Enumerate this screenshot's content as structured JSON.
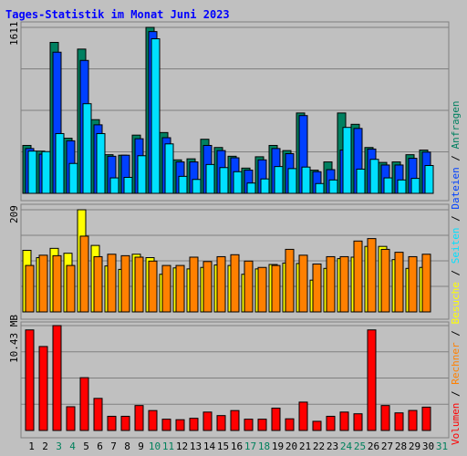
{
  "chart_data": [
    {
      "type": "bar",
      "title": "Tages-Statistik im Monat Juni 2023",
      "ylabel": "1611",
      "categories": [
        "1",
        "2",
        "3",
        "4",
        "5",
        "6",
        "7",
        "8",
        "9",
        "10",
        "11",
        "12",
        "13",
        "14",
        "15",
        "16",
        "17",
        "18",
        "19",
        "20",
        "21",
        "22",
        "23",
        "24",
        "25",
        "26",
        "27",
        "28",
        "29",
        "30",
        "31"
      ],
      "weekend_days": [
        "3",
        "4",
        "10",
        "11",
        "17",
        "18",
        "24",
        "25",
        "31"
      ],
      "series": [
        {
          "name": "Anfragen",
          "color": "#008060",
          "values": [
            465,
            410,
            1465,
            535,
            1400,
            715,
            375,
            370,
            565,
            1611,
            590,
            325,
            335,
            525,
            445,
            360,
            245,
            355,
            465,
            415,
            780,
            225,
            305,
            780,
            670,
            445,
            300,
            305,
            375,
            420,
            0
          ]
        },
        {
          "name": "Dateien",
          "color": "#0040ff",
          "values": [
            435,
            380,
            1370,
            510,
            1290,
            665,
            360,
            370,
            530,
            1570,
            540,
            305,
            305,
            465,
            415,
            345,
            225,
            325,
            435,
            385,
            755,
            210,
            230,
            420,
            630,
            430,
            275,
            275,
            340,
            400,
            0
          ]
        },
        {
          "name": "Seiten",
          "color": "#00e0ff",
          "values": [
            410,
            405,
            580,
            290,
            870,
            580,
            150,
            155,
            365,
            1500,
            480,
            165,
            135,
            280,
            250,
            210,
            100,
            140,
            260,
            240,
            255,
            95,
            130,
            640,
            235,
            330,
            150,
            130,
            145,
            270,
            0
          ]
        }
      ]
    },
    {
      "type": "bar",
      "ylabel": "209",
      "categories": [
        "1",
        "2",
        "3",
        "4",
        "5",
        "6",
        "7",
        "8",
        "9",
        "10",
        "11",
        "12",
        "13",
        "14",
        "15",
        "16",
        "17",
        "18",
        "19",
        "20",
        "21",
        "22",
        "23",
        "24",
        "25",
        "26",
        "27",
        "28",
        "29",
        "30",
        "31"
      ],
      "series": [
        {
          "name": "Besuche",
          "color": "#ffff00",
          "values": [
            126,
            111,
            130,
            120,
            209,
            136,
            94,
            87,
            118,
            111,
            77,
            90,
            88,
            91,
            96,
            95,
            77,
            88,
            97,
            100,
            99,
            65,
            89,
            109,
            112,
            134,
            134,
            107,
            89,
            91,
            0
          ]
        },
        {
          "name": "Rechner",
          "color": "#ff8000",
          "values": [
            95,
            116,
            115,
            95,
            155,
            113,
            118,
            115,
            112,
            104,
            95,
            95,
            112,
            103,
            113,
            117,
            104,
            91,
            95,
            128,
            116,
            98,
            113,
            113,
            145,
            150,
            128,
            122,
            113,
            118,
            0
          ]
        }
      ]
    },
    {
      "type": "bar",
      "ylabel": "10.43 MB",
      "categories": [
        "1",
        "2",
        "3",
        "4",
        "5",
        "6",
        "7",
        "8",
        "9",
        "10",
        "11",
        "12",
        "13",
        "14",
        "15",
        "16",
        "17",
        "18",
        "19",
        "20",
        "21",
        "22",
        "23",
        "24",
        "25",
        "26",
        "27",
        "28",
        "29",
        "30",
        "31"
      ],
      "series": [
        {
          "name": "Volumen",
          "color": "#ff0000",
          "values": [
            10.0,
            8.35,
            10.43,
            2.36,
            5.25,
            3.19,
            1.41,
            1.41,
            2.48,
            1.98,
            1.12,
            1.07,
            1.21,
            1.83,
            1.48,
            1.98,
            1.12,
            1.12,
            2.22,
            1.16,
            2.82,
            0.91,
            1.41,
            1.83,
            1.66,
            10.0,
            2.48,
            1.75,
            1.99,
            2.32,
            0
          ]
        }
      ]
    }
  ],
  "legend_vertical": [
    {
      "label": "Volumen",
      "color": "#ff0000"
    },
    {
      "label": " / ",
      "color": "#000000"
    },
    {
      "label": "Rechner",
      "color": "#ff8000"
    },
    {
      "label": " / ",
      "color": "#000000"
    },
    {
      "label": "Besuche",
      "color": "#ffff00"
    },
    {
      "label": " / ",
      "color": "#000000"
    },
    {
      "label": "Seiten",
      "color": "#00e0ff"
    },
    {
      "label": " / ",
      "color": "#000000"
    },
    {
      "label": "Dateien",
      "color": "#0040ff"
    },
    {
      "label": " / ",
      "color": "#000000"
    },
    {
      "label": "Anfragen",
      "color": "#008060"
    }
  ],
  "colors": {
    "background": "#c0c0c0",
    "title": "#0000ff",
    "weekday_label": "#000000",
    "weekend_label": "#00805c"
  }
}
